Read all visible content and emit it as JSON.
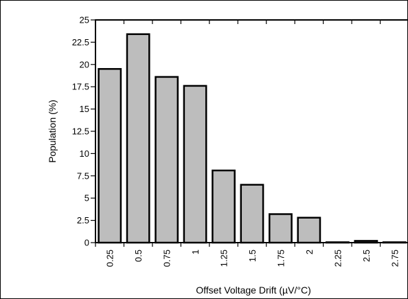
{
  "chart_data": {
    "type": "bar",
    "title": "",
    "xlabel": "Offset Voltage Drift (µV/°C)",
    "ylabel": "Population  (%)",
    "categories": [
      "0.25",
      "0.5",
      "0.75",
      "1",
      "1.25",
      "1.5",
      "1.75",
      "2",
      "2.25",
      "2.5",
      "2.75"
    ],
    "values": [
      19.5,
      23.4,
      18.6,
      17.6,
      8.1,
      6.5,
      3.2,
      2.8,
      0.05,
      0.2,
      0.05
    ],
    "ylim": [
      0,
      25
    ],
    "yticks": [
      "0",
      "2.5",
      "5",
      "7.5",
      "10",
      "12.5",
      "15",
      "17.5",
      "20",
      "22.5",
      "25"
    ],
    "grid": false,
    "legend": "none",
    "bar_color": "#bdbdbd",
    "edge_color": "#000000"
  }
}
